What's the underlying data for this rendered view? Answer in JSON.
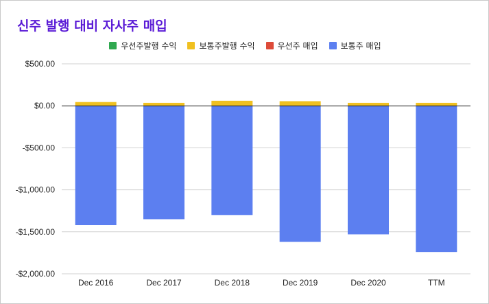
{
  "chart_data": {
    "type": "bar",
    "stacked": true,
    "title": "신주 발행 대비 자사주 매입",
    "categories": [
      "Dec 2016",
      "Dec 2017",
      "Dec 2018",
      "Dec 2019",
      "Dec 2020",
      "TTM"
    ],
    "series": [
      {
        "name": "우선주발행 수익",
        "color": "#2fa84f",
        "values": [
          0,
          0,
          0,
          0,
          0,
          0
        ]
      },
      {
        "name": "보통주발행 수익",
        "color": "#f0c020",
        "values": [
          45,
          35,
          60,
          55,
          35,
          35
        ]
      },
      {
        "name": "우선주 매입",
        "color": "#dd4b39",
        "values": [
          0,
          0,
          0,
          0,
          0,
          0
        ]
      },
      {
        "name": "보통주 매입",
        "color": "#5c7ff0",
        "values": [
          -1420,
          -1350,
          -1300,
          -1620,
          -1530,
          -1740
        ]
      }
    ],
    "ylim": [
      -2000,
      500
    ],
    "yticks": [
      500,
      0,
      -500,
      -1000,
      -1500,
      -2000
    ],
    "ytick_labels": [
      "$500.00",
      "$0.00",
      "-$500.00",
      "-$1,000.00",
      "-$1,500.00",
      "-$2,000.00"
    ],
    "grid": true,
    "legend_position": "top"
  }
}
